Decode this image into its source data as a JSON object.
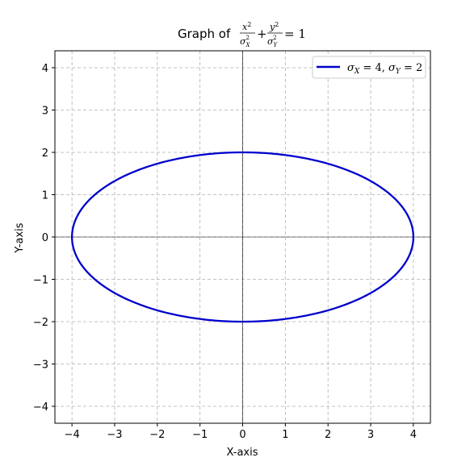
{
  "chart_data": {
    "type": "line",
    "title": {
      "prefix": "Graph of",
      "frac1_num": "x",
      "frac1_num_sup": "2",
      "frac1_den": "σ",
      "frac1_den_sub": "X",
      "frac1_den_sup": "2",
      "plus": "+",
      "frac2_num": "y",
      "frac2_num_sup": "2",
      "frac2_den": "σ",
      "frac2_den_sub": "Y",
      "frac2_den_sup": "2",
      "equals": "= 1"
    },
    "xlabel": "X-axis",
    "ylabel": "Y-axis",
    "xlim": [
      -4.4,
      4.4
    ],
    "ylim": [
      -4.4,
      4.4
    ],
    "xticks": [
      -4,
      -3,
      -2,
      -1,
      0,
      1,
      2,
      3,
      4
    ],
    "yticks": [
      -4,
      -3,
      -2,
      -1,
      0,
      1,
      2,
      3,
      4
    ],
    "xtick_labels": [
      "−4",
      "−3",
      "−2",
      "−1",
      "0",
      "1",
      "2",
      "3",
      "4"
    ],
    "ytick_labels": [
      "−4",
      "−3",
      "−2",
      "−1",
      "0",
      "1",
      "2",
      "3",
      "4"
    ],
    "grid": true,
    "grid_style": "dashed",
    "legend_position": "top-right",
    "series": [
      {
        "label_parts": {
          "s1": "σ",
          "s1_sub": "X",
          "eq1": " = 4, ",
          "s2": "σ",
          "s2_sub": "Y",
          "eq2": " = 2"
        },
        "color": "#0000cc",
        "sigma_x": 4,
        "sigma_y": 2,
        "x": [
          4.0,
          3.8042,
          3.2361,
          2.3511,
          1.2361,
          0.0,
          -1.2361,
          -2.3511,
          -3.2361,
          -3.8042,
          -4.0,
          -3.8042,
          -3.2361,
          -2.3511,
          -1.2361,
          0.0,
          1.2361,
          2.3511,
          3.2361,
          3.8042,
          4.0
        ],
        "y": [
          0.0,
          0.618,
          1.1756,
          1.618,
          1.9021,
          2.0,
          1.9021,
          1.618,
          1.1756,
          0.618,
          0.0,
          -0.618,
          -1.1756,
          -1.618,
          -1.9021,
          -2.0,
          -1.9021,
          -1.618,
          -1.1756,
          -0.618,
          0.0
        ]
      }
    ]
  }
}
